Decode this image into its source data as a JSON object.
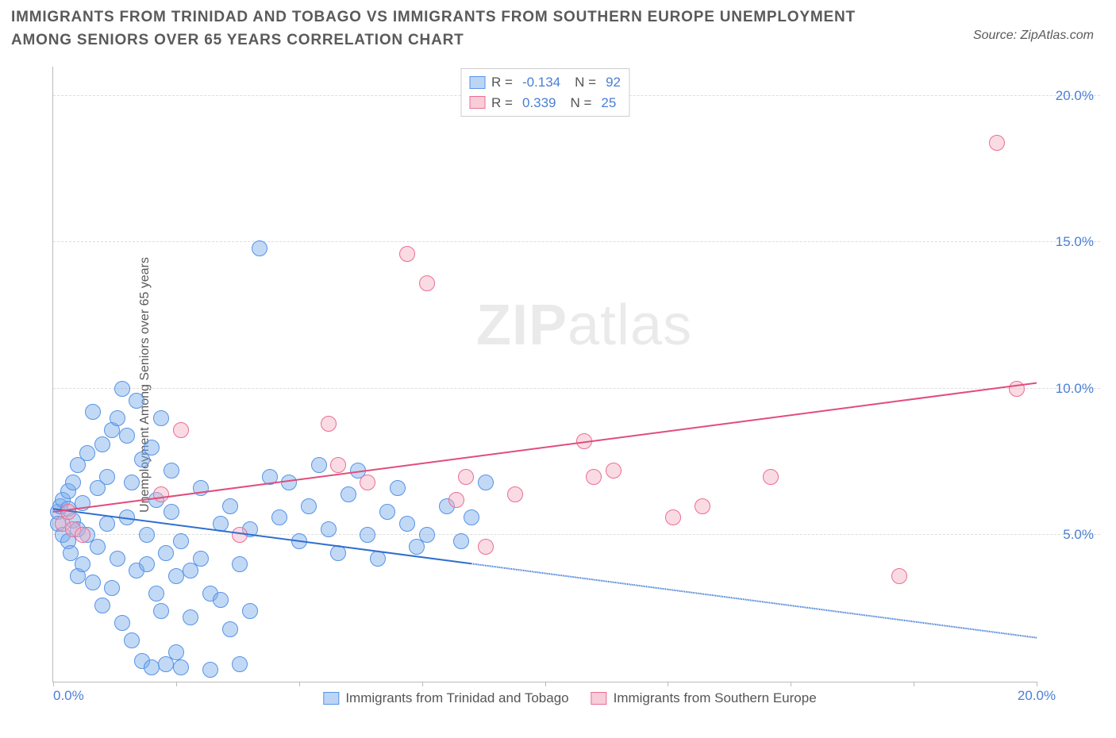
{
  "header": {
    "title": "IMMIGRANTS FROM TRINIDAD AND TOBAGO VS IMMIGRANTS FROM SOUTHERN EUROPE UNEMPLOYMENT AMONG SENIORS OVER 65 YEARS CORRELATION CHART",
    "source_prefix": "Source:",
    "source_name": "ZipAtlas.com"
  },
  "axes": {
    "y_label": "Unemployment Among Seniors over 65 years",
    "xlim": [
      0,
      20
    ],
    "ylim": [
      0,
      21
    ],
    "y_ticks": [
      5,
      10,
      15,
      20
    ],
    "y_tick_labels": [
      "5.0%",
      "10.0%",
      "15.0%",
      "20.0%"
    ],
    "x_ticks": [
      0,
      5,
      10,
      15,
      20
    ],
    "x_tick_minor": [
      2.5,
      7.5,
      12.5,
      17.5
    ],
    "x_corner_label": "0.0%",
    "x_end_label": "20.0%",
    "label_color": "#4a7fd6",
    "grid_color": "#dddddd",
    "axis_color": "#bbbbbb",
    "label_fontsize": 17
  },
  "watermark": {
    "zip": "ZIP",
    "atlas": "atlas"
  },
  "legend_top": {
    "rows": [
      {
        "swatch_fill": "#bcd5f5",
        "swatch_border": "#5693e6",
        "r_label": "R =",
        "r_value": "-0.134",
        "n_label": "N =",
        "n_value": "92"
      },
      {
        "swatch_fill": "#f7cdd9",
        "swatch_border": "#ea6e94",
        "r_label": "R =",
        "r_value": "0.339",
        "n_label": "N =",
        "n_value": "25"
      }
    ]
  },
  "legend_bottom": {
    "items": [
      {
        "swatch_fill": "#bcd5f5",
        "swatch_border": "#5693e6",
        "label": "Immigrants from Trinidad and Tobago"
      },
      {
        "swatch_fill": "#f7cdd9",
        "swatch_border": "#ea6e94",
        "label": "Immigrants from Southern Europe"
      }
    ]
  },
  "series": [
    {
      "name": "trinidad",
      "fill": "rgba(120,170,235,0.45)",
      "stroke": "#5693e6",
      "marker_radius": 10,
      "trend": {
        "color": "#2f6fd0",
        "width": 2,
        "solid_to_x": 8.5,
        "y_at_0": 5.9,
        "y_at_20": 1.5
      },
      "points": [
        [
          0.1,
          5.8
        ],
        [
          0.1,
          5.4
        ],
        [
          0.15,
          6.0
        ],
        [
          0.2,
          5.0
        ],
        [
          0.2,
          6.2
        ],
        [
          0.3,
          4.8
        ],
        [
          0.3,
          5.9
        ],
        [
          0.3,
          6.5
        ],
        [
          0.35,
          4.4
        ],
        [
          0.4,
          5.5
        ],
        [
          0.4,
          6.8
        ],
        [
          0.5,
          3.6
        ],
        [
          0.5,
          5.2
        ],
        [
          0.5,
          7.4
        ],
        [
          0.6,
          4.0
        ],
        [
          0.6,
          6.1
        ],
        [
          0.7,
          7.8
        ],
        [
          0.7,
          5.0
        ],
        [
          0.8,
          9.2
        ],
        [
          0.8,
          3.4
        ],
        [
          0.9,
          6.6
        ],
        [
          0.9,
          4.6
        ],
        [
          1.0,
          8.1
        ],
        [
          1.0,
          2.6
        ],
        [
          1.1,
          5.4
        ],
        [
          1.1,
          7.0
        ],
        [
          1.2,
          8.6
        ],
        [
          1.2,
          3.2
        ],
        [
          1.3,
          9.0
        ],
        [
          1.3,
          4.2
        ],
        [
          1.4,
          10.0
        ],
        [
          1.4,
          2.0
        ],
        [
          1.5,
          8.4
        ],
        [
          1.5,
          5.6
        ],
        [
          1.6,
          6.8
        ],
        [
          1.6,
          1.4
        ],
        [
          1.7,
          9.6
        ],
        [
          1.7,
          3.8
        ],
        [
          1.8,
          7.6
        ],
        [
          1.8,
          0.7
        ],
        [
          1.9,
          5.0
        ],
        [
          1.9,
          4.0
        ],
        [
          2.0,
          8.0
        ],
        [
          2.0,
          0.5
        ],
        [
          2.1,
          3.0
        ],
        [
          2.1,
          6.2
        ],
        [
          2.2,
          9.0
        ],
        [
          2.2,
          2.4
        ],
        [
          2.3,
          4.4
        ],
        [
          2.3,
          0.6
        ],
        [
          2.4,
          5.8
        ],
        [
          2.4,
          7.2
        ],
        [
          2.5,
          3.6
        ],
        [
          2.5,
          1.0
        ],
        [
          2.6,
          4.8
        ],
        [
          2.6,
          0.5
        ],
        [
          2.8,
          3.8
        ],
        [
          2.8,
          2.2
        ],
        [
          3.0,
          4.2
        ],
        [
          3.0,
          6.6
        ],
        [
          3.2,
          3.0
        ],
        [
          3.2,
          0.4
        ],
        [
          3.4,
          5.4
        ],
        [
          3.4,
          2.8
        ],
        [
          3.6,
          1.8
        ],
        [
          3.6,
          6.0
        ],
        [
          3.8,
          4.0
        ],
        [
          3.8,
          0.6
        ],
        [
          4.0,
          5.2
        ],
        [
          4.0,
          2.4
        ],
        [
          4.2,
          14.8
        ],
        [
          4.4,
          7.0
        ],
        [
          4.6,
          5.6
        ],
        [
          4.8,
          6.8
        ],
        [
          5.0,
          4.8
        ],
        [
          5.2,
          6.0
        ],
        [
          5.4,
          7.4
        ],
        [
          5.6,
          5.2
        ],
        [
          5.8,
          4.4
        ],
        [
          6.0,
          6.4
        ],
        [
          6.2,
          7.2
        ],
        [
          6.4,
          5.0
        ],
        [
          6.6,
          4.2
        ],
        [
          6.8,
          5.8
        ],
        [
          7.0,
          6.6
        ],
        [
          7.2,
          5.4
        ],
        [
          7.4,
          4.6
        ],
        [
          7.6,
          5.0
        ],
        [
          8.0,
          6.0
        ],
        [
          8.3,
          4.8
        ],
        [
          8.5,
          5.6
        ],
        [
          8.8,
          6.8
        ]
      ]
    },
    {
      "name": "southern_europe",
      "fill": "rgba(245,175,195,0.45)",
      "stroke": "#ea6e94",
      "marker_radius": 10,
      "trend": {
        "color": "#e14d7b",
        "width": 2,
        "solid_to_x": 20,
        "y_at_0": 5.8,
        "y_at_20": 10.2
      },
      "points": [
        [
          0.2,
          5.4
        ],
        [
          0.3,
          5.8
        ],
        [
          0.4,
          5.2
        ],
        [
          0.6,
          5.0
        ],
        [
          2.2,
          6.4
        ],
        [
          2.6,
          8.6
        ],
        [
          3.8,
          5.0
        ],
        [
          5.6,
          8.8
        ],
        [
          5.8,
          7.4
        ],
        [
          6.4,
          6.8
        ],
        [
          7.2,
          14.6
        ],
        [
          7.6,
          13.6
        ],
        [
          8.2,
          6.2
        ],
        [
          8.4,
          7.0
        ],
        [
          8.8,
          4.6
        ],
        [
          9.4,
          6.4
        ],
        [
          10.8,
          8.2
        ],
        [
          11.0,
          7.0
        ],
        [
          11.4,
          7.2
        ],
        [
          12.6,
          5.6
        ],
        [
          14.6,
          7.0
        ],
        [
          17.2,
          3.6
        ],
        [
          19.2,
          18.4
        ],
        [
          19.6,
          10.0
        ],
        [
          13.2,
          6.0
        ]
      ]
    }
  ]
}
